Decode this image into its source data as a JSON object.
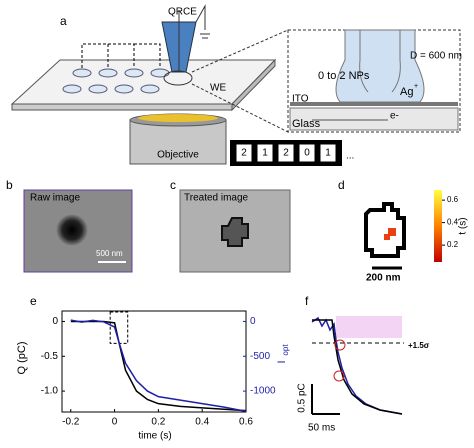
{
  "panel_labels": [
    "a",
    "b",
    "c",
    "d",
    "e",
    "f"
  ],
  "panel_a": {
    "qrce": "QRCE",
    "we": "WE",
    "objective": "Objective",
    "diameter": "D = 600 nm",
    "nps": "0 to 2 NPs",
    "ion": "Ag",
    "ion_charge": "+",
    "ito": "ITO",
    "electron": "e-",
    "glass": "Glass",
    "sequence": [
      "2",
      "1",
      "2",
      "0",
      "1"
    ],
    "ellipsis": "..."
  },
  "panel_b": {
    "label": "Raw image",
    "scale": "500 nm"
  },
  "panel_c": {
    "label": "Treated image"
  },
  "panel_d": {
    "clim": [
      0.05,
      0.69
    ],
    "colorbar_ticks": [
      0.6,
      0.4,
      0.2
    ],
    "colorbar_label": "t (s)",
    "scale": "200 nm"
  },
  "panel_f": {
    "threshold": "+1.5σ",
    "y_scale": "0.5 pC",
    "x_scale": "50 ms"
  },
  "chart_data": {
    "type": "line",
    "xlabel": "time (s)",
    "ylabel": "Q (pC)",
    "y2label": "I",
    "y2label_sub": "opt",
    "x": [
      -0.2,
      -0.15,
      -0.1,
      -0.05,
      0,
      0.02,
      0.05,
      0.1,
      0.15,
      0.2,
      0.3,
      0.4,
      0.5,
      0.6
    ],
    "series": [
      {
        "name": "Q",
        "color": "#000000",
        "values": [
          0,
          0,
          0,
          0,
          -0.02,
          -0.3,
          -0.7,
          -1.0,
          -1.12,
          -1.18,
          -1.22,
          -1.24,
          -1.26,
          -1.28
        ]
      },
      {
        "name": "Iopt",
        "color": "#1f1fa8",
        "axis": "y2",
        "values": [
          20,
          -10,
          15,
          -5,
          -80,
          -300,
          -600,
          -850,
          -1000,
          -1080,
          -1130,
          -1180,
          -1230,
          -1290
        ]
      }
    ],
    "xlim": [
      -0.24,
      0.6
    ],
    "xticks": [
      -0.2,
      0,
      0.2,
      0.4,
      0.6
    ],
    "ylim": [
      -1.3,
      0.15
    ],
    "yticks": [
      0,
      -0.5,
      {
        "value": -1,
        "label": "-1.0"
      }
    ],
    "y2lim": [
      -1300,
      150
    ],
    "y2ticks": [
      0,
      -500,
      -1000
    ]
  }
}
